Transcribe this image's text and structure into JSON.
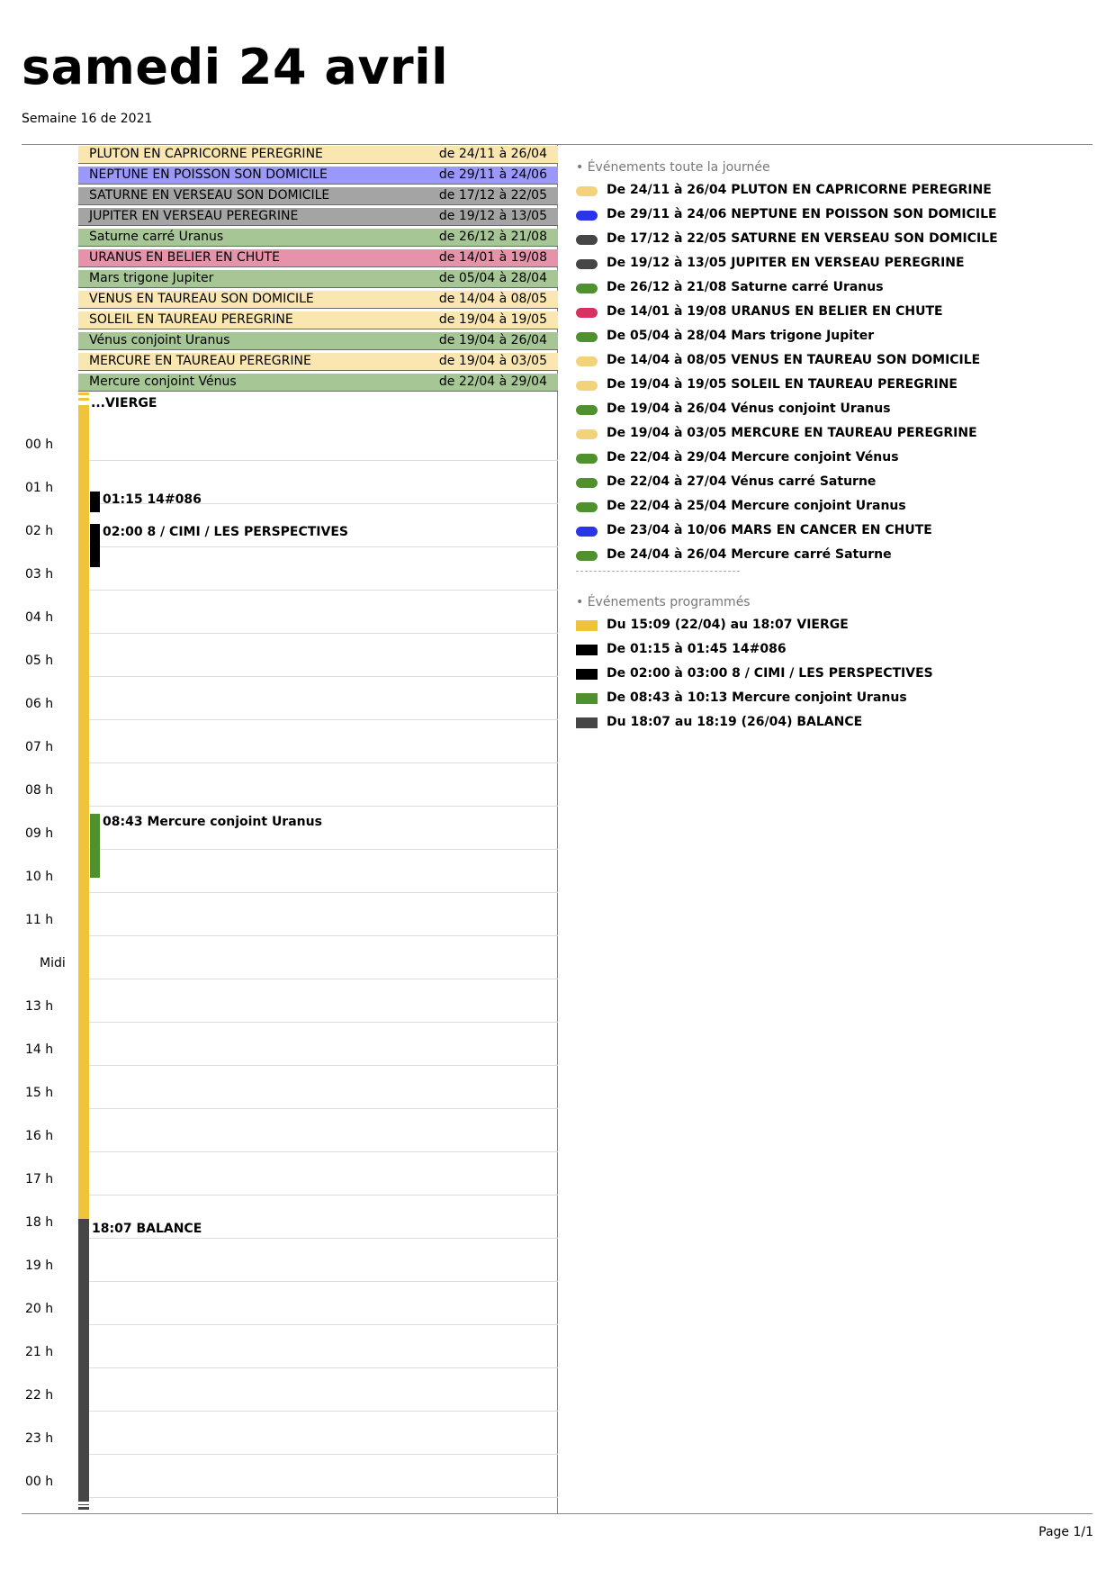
{
  "header": {
    "title": "samedi 24 avril",
    "subtitle": "Semaine 16 de 2021"
  },
  "colors": {
    "yellow_light": "#f9e6b0",
    "blue": "#9a98fa",
    "grey": "#a4a4a4",
    "green": "#a6c695",
    "pink": "#e592aa",
    "yellow": "#f0c43a",
    "black": "#000000",
    "dark_grey": "#464646",
    "green_dark": "#4e912d",
    "blue_dark": "#2a35e8",
    "red": "#d83060",
    "yellow_dot": "#f2d37a"
  },
  "allday": [
    {
      "title": "PLUTON EN CAPRICORNE PEREGRINE",
      "dates": "de 24/11 à 26/04",
      "color": "#f9e6b0"
    },
    {
      "title": "NEPTUNE EN POISSON SON DOMICILE",
      "dates": "de 29/11 à 24/06",
      "color": "#9a98fa"
    },
    {
      "title": "SATURNE EN VERSEAU SON DOMICILE",
      "dates": "de 17/12 à 22/05",
      "color": "#a4a4a4"
    },
    {
      "title": "JUPITER EN VERSEAU PEREGRINE",
      "dates": "de 19/12 à 13/05",
      "color": "#a4a4a4"
    },
    {
      "title": "Saturne carré Uranus",
      "dates": "de 26/12 à 21/08",
      "color": "#a6c695"
    },
    {
      "title": "URANUS EN BELIER EN CHUTE",
      "dates": "de 14/01 à 19/08",
      "color": "#e592aa"
    },
    {
      "title": "Mars trigone Jupiter",
      "dates": "de 05/04 à 28/04",
      "color": "#a6c695"
    },
    {
      "title": "VENUS EN TAUREAU SON DOMICILE",
      "dates": "de 14/04 à 08/05",
      "color": "#f9e6b0"
    },
    {
      "title": "SOLEIL EN TAUREAU PEREGRINE",
      "dates": "de 19/04 à 19/05",
      "color": "#f9e6b0"
    },
    {
      "title": "Vénus conjoint Uranus",
      "dates": "de 19/04 à 26/04",
      "color": "#a6c695"
    },
    {
      "title": "MERCURE EN TAUREAU PEREGRINE",
      "dates": "de 19/04 à 03/05",
      "color": "#f9e6b0"
    },
    {
      "title": "Mercure conjoint Vénus",
      "dates": "de 22/04 à 29/04",
      "color": "#a6c695"
    }
  ],
  "hours": [
    "00 h",
    "01 h",
    "02 h",
    "03 h",
    "04 h",
    "05 h",
    "06 h",
    "07 h",
    "08 h",
    "09 h",
    "10 h",
    "11 h",
    "Midi",
    "13 h",
    "14 h",
    "15 h",
    "16 h",
    "17 h",
    "18 h",
    "19 h",
    "20 h",
    "21 h",
    "22 h",
    "23 h",
    "00 h"
  ],
  "timed": {
    "vierge": "...VIERGE",
    "e1": "01:15 14#086",
    "e2": "02:00 8 / CIMI / LES PERSPECTIVES",
    "e3": "08:43 Mercure conjoint Uranus",
    "balance": "18:07 BALANCE"
  },
  "legend": {
    "allday_heading": "• Événements toute la journée",
    "allday_items": [
      {
        "text": "De 24/11 à 26/04 PLUTON EN CAPRICORNE PEREGRINE",
        "color": "#f2d37a"
      },
      {
        "text": "De 29/11 à 24/06 NEPTUNE EN POISSON SON DOMICILE",
        "color": "#2a35e8"
      },
      {
        "text": "De 17/12 à 22/05 SATURNE EN VERSEAU SON DOMICILE",
        "color": "#464646"
      },
      {
        "text": "De 19/12 à 13/05 JUPITER EN VERSEAU PEREGRINE",
        "color": "#464646"
      },
      {
        "text": "De 26/12 à 21/08 Saturne carré Uranus",
        "color": "#4e912d"
      },
      {
        "text": "De 14/01 à 19/08 URANUS EN BELIER EN CHUTE",
        "color": "#d83060"
      },
      {
        "text": "De 05/04 à 28/04 Mars trigone Jupiter",
        "color": "#4e912d"
      },
      {
        "text": "De 14/04 à 08/05 VENUS EN TAUREAU SON DOMICILE",
        "color": "#f2d37a"
      },
      {
        "text": "De 19/04 à 19/05 SOLEIL EN TAUREAU PEREGRINE",
        "color": "#f2d37a"
      },
      {
        "text": "De 19/04 à 26/04 Vénus conjoint Uranus",
        "color": "#4e912d"
      },
      {
        "text": "De 19/04 à 03/05 MERCURE EN TAUREAU PEREGRINE",
        "color": "#f2d37a"
      },
      {
        "text": "De 22/04 à 29/04 Mercure conjoint Vénus",
        "color": "#4e912d"
      },
      {
        "text": "De 22/04 à 27/04 Vénus carré Saturne",
        "color": "#4e912d"
      },
      {
        "text": "De 22/04 à 25/04 Mercure conjoint Uranus",
        "color": "#4e912d"
      },
      {
        "text": "De 23/04 à 10/06 MARS EN CANCER EN CHUTE",
        "color": "#2a35e8"
      },
      {
        "text": "De 24/04 à 26/04 Mercure carré Saturne",
        "color": "#4e912d"
      }
    ],
    "scheduled_heading": "• Événements programmés",
    "scheduled_items": [
      {
        "text": "Du 15:09 (22/04) au 18:07 VIERGE",
        "color": "#f0c43a"
      },
      {
        "text": "De 01:15 à 01:45 14#086",
        "color": "#000000"
      },
      {
        "text": "De 02:00 à 03:00 8 / CIMI / LES PERSPECTIVES",
        "color": "#000000"
      },
      {
        "text": "De 08:43 à 10:13 Mercure conjoint Uranus",
        "color": "#4e912d"
      },
      {
        "text": "Du 18:07 au 18:19 (26/04) BALANCE",
        "color": "#464646"
      }
    ]
  },
  "footer": {
    "page": "Page 1/1"
  }
}
